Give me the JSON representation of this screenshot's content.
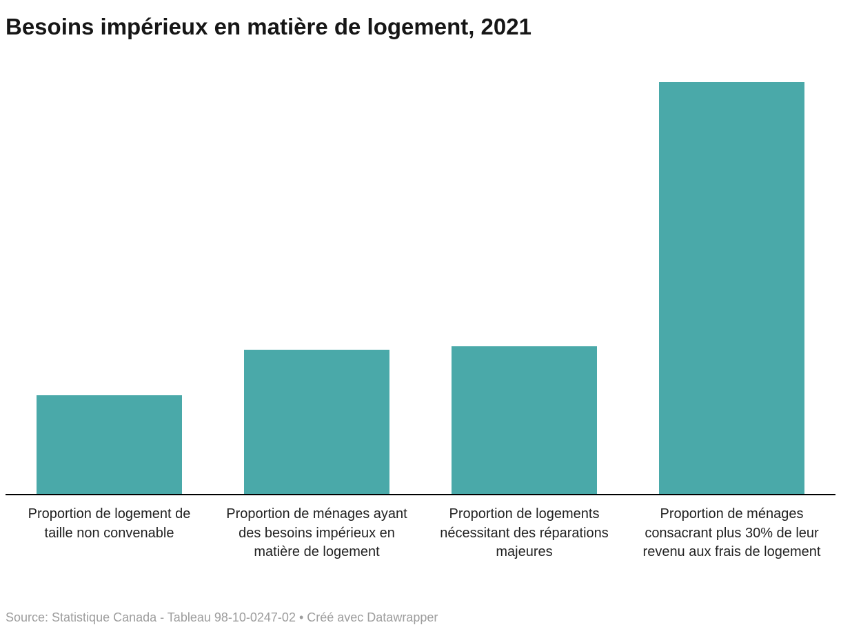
{
  "chart_data": {
    "type": "bar",
    "title": "Besoins impérieux en matière de logement, 2021",
    "categories": [
      "Proportion de logement de taille non convenable",
      "Proportion de ménages ayant des besoins impérieux en matière de logement",
      "Proportion de logements nécessitant des réparations majeures",
      "Proportion de ménages consacrant plus 30% de leur revenu aux frais de logement"
    ],
    "values": [
      5.0,
      7.3,
      7.5,
      20.9
    ],
    "ylim": [
      0,
      21.5
    ],
    "xlabel": "",
    "ylabel": "",
    "bar_color": "#4aa9a9",
    "grid": false,
    "legend": "none",
    "y_axis_shown": false,
    "value_labels_shown": false
  },
  "footer": {
    "source": "Source: Statistique Canada - Tableau 98-10-0247-02 • Créé avec Datawrapper"
  }
}
